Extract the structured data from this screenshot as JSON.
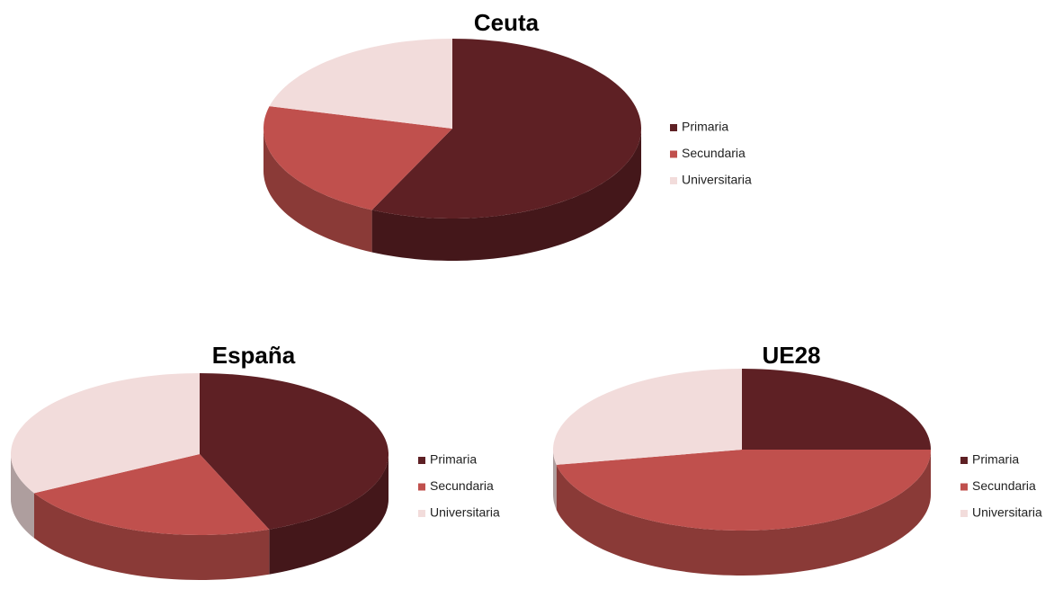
{
  "chart_data": [
    {
      "type": "pie",
      "title": "Ceuta",
      "categories": [
        "Primaria",
        "Secundaria",
        "Universitaria"
      ],
      "values": [
        57,
        22,
        21
      ],
      "colors": [
        "#5e2024",
        "#c0504d",
        "#f2dcdb"
      ]
    },
    {
      "type": "pie",
      "title": "España",
      "categories": [
        "Primaria",
        "Secundaria",
        "Universitaria"
      ],
      "values": [
        44,
        23,
        33
      ],
      "colors": [
        "#5e2024",
        "#c0504d",
        "#f2dcdb"
      ]
    },
    {
      "type": "pie",
      "title": "UE28",
      "categories": [
        "Primaria",
        "Secundaria",
        "Universitaria"
      ],
      "values": [
        25,
        47,
        28
      ],
      "colors": [
        "#5e2024",
        "#c0504d",
        "#f2dcdb"
      ]
    }
  ]
}
